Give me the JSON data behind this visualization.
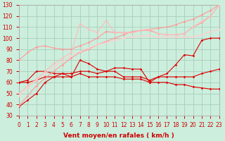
{
  "title": "",
  "xlabel": "Vent moyen/en rafales ( km/h )",
  "ylabel": "",
  "xlim": [
    0,
    23
  ],
  "ylim": [
    30,
    130
  ],
  "yticks": [
    30,
    40,
    50,
    60,
    70,
    80,
    90,
    100,
    110,
    120,
    130
  ],
  "xticks": [
    0,
    1,
    2,
    3,
    4,
    5,
    6,
    7,
    8,
    9,
    10,
    11,
    12,
    13,
    14,
    15,
    16,
    17,
    18,
    19,
    20,
    21,
    22,
    23
  ],
  "background_color": "#cceedd",
  "grid_color": "#aaccbb",
  "lines": [
    {
      "x": [
        0,
        1,
        2,
        3,
        4,
        5,
        6,
        7,
        8,
        9,
        10,
        11,
        12,
        13,
        14,
        15,
        16,
        17,
        18,
        19,
        20,
        21,
        22,
        23
      ],
      "y": [
        38,
        44,
        50,
        60,
        65,
        68,
        65,
        80,
        77,
        72,
        70,
        73,
        73,
        72,
        72,
        60,
        65,
        68,
        76,
        85,
        84,
        98,
        100,
        100
      ],
      "color": "#dd0000",
      "lw": 0.8,
      "marker": "D",
      "ms": 1.8
    },
    {
      "x": [
        0,
        1,
        2,
        3,
        4,
        5,
        6,
        7,
        8,
        9,
        10,
        11,
        12,
        13,
        14,
        15,
        16,
        17,
        18,
        19,
        20,
        21,
        22,
        23
      ],
      "y": [
        60,
        62,
        70,
        70,
        68,
        68,
        68,
        70,
        70,
        68,
        70,
        70,
        65,
        65,
        65,
        62,
        65,
        65,
        65,
        65,
        65,
        68,
        70,
        72
      ],
      "color": "#dd0000",
      "lw": 0.8,
      "marker": "D",
      "ms": 1.8
    },
    {
      "x": [
        0,
        1,
        2,
        3,
        4,
        5,
        6,
        7,
        8,
        9,
        10,
        11,
        12,
        13,
        14,
        15,
        16,
        17,
        18,
        19,
        20,
        21,
        22,
        23
      ],
      "y": [
        60,
        60,
        62,
        65,
        65,
        65,
        65,
        68,
        65,
        65,
        65,
        65,
        63,
        63,
        63,
        60,
        60,
        60,
        58,
        58,
        56,
        55,
        54,
        54
      ],
      "color": "#dd0000",
      "lw": 0.8,
      "marker": "D",
      "ms": 1.8
    },
    {
      "x": [
        0,
        1,
        2,
        3,
        4,
        5,
        6,
        7,
        8,
        9,
        10,
        11,
        12,
        13,
        14,
        15,
        16,
        17,
        18,
        19,
        20,
        21,
        22,
        23
      ],
      "y": [
        39,
        48,
        57,
        64,
        70,
        76,
        82,
        87,
        90,
        94,
        97,
        100,
        103,
        106,
        107,
        108,
        109,
        110,
        112,
        115,
        117,
        121,
        125,
        130
      ],
      "color": "#ff9999",
      "lw": 0.8,
      "marker": "D",
      "ms": 1.8
    },
    {
      "x": [
        0,
        1,
        2,
        3,
        4,
        5,
        6,
        7,
        8,
        9,
        10,
        11,
        12,
        13,
        14,
        15,
        16,
        17,
        18,
        19,
        20,
        21,
        22,
        23
      ],
      "y": [
        80,
        87,
        92,
        93,
        91,
        90,
        90,
        93,
        96,
        100,
        106,
        105,
        105,
        105,
        107,
        107,
        104,
        103,
        103,
        104,
        110,
        114,
        120,
        130
      ],
      "color": "#ff9999",
      "lw": 0.8,
      "marker": "D",
      "ms": 1.8
    },
    {
      "x": [
        0,
        1,
        2,
        3,
        4,
        5,
        6,
        7,
        8,
        9,
        10,
        11,
        12,
        13,
        14,
        15,
        16,
        17,
        18,
        19,
        20,
        21,
        22,
        23
      ],
      "y": [
        50,
        57,
        63,
        70,
        77,
        82,
        87,
        113,
        108,
        105,
        116,
        105,
        105,
        105,
        107,
        108,
        104,
        103,
        103,
        104,
        110,
        115,
        120,
        130
      ],
      "color": "#ffbbbb",
      "lw": 0.8,
      "marker": "D",
      "ms": 1.8
    },
    {
      "x": [
        0,
        1,
        2,
        3,
        4,
        5,
        6,
        7,
        8,
        9,
        10,
        11,
        12,
        13,
        14,
        15,
        16,
        17,
        18,
        19,
        20,
        21,
        22,
        23
      ],
      "y": [
        48,
        55,
        62,
        68,
        74,
        79,
        84,
        88,
        91,
        94,
        96,
        98,
        100,
        101,
        102,
        102,
        101,
        101,
        101,
        101,
        101,
        103,
        106,
        108
      ],
      "color": "#ffcccc",
      "lw": 0.8,
      "marker": "D",
      "ms": 1.8
    }
  ],
  "tick_color": "#cc0000",
  "label_color": "#cc0000",
  "axis_color": "#aaaaaa",
  "xlabel_fontsize": 6.5,
  "tick_fontsize": 5.5
}
